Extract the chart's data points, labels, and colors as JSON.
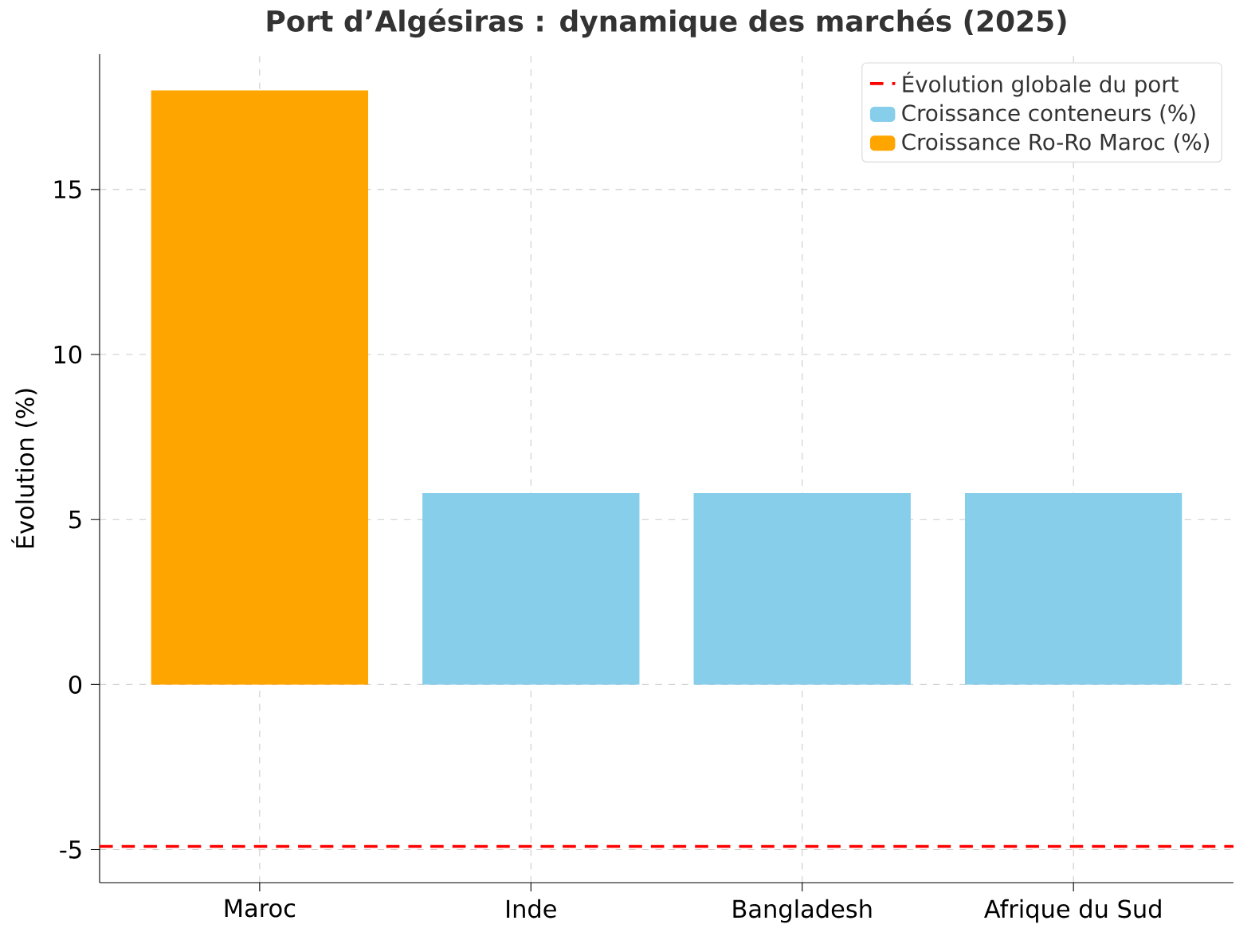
{
  "chart_data": {
    "type": "bar",
    "title": "Port d’Algésiras : dynamique des marchés (2025)",
    "ylabel": "Évolution (%)",
    "categories": [
      "Maroc",
      "Inde",
      "Bangladesh",
      "Afrique du Sud"
    ],
    "series": [
      {
        "name": "Croissance conteneurs (%)",
        "color": "#87ceeb",
        "values": [
          null,
          5.8,
          5.8,
          5.8
        ]
      },
      {
        "name": "Croissance Ro-Ro Maroc (%)",
        "color": "#ffa500",
        "values": [
          18,
          null,
          null,
          null
        ]
      }
    ],
    "ylim": [
      -6,
      19.1
    ],
    "yticks": [
      -5,
      0,
      5,
      10,
      15
    ],
    "ref_lines": [
      {
        "axis": "y",
        "value": -4.9,
        "label": "Évolution globale du port",
        "color": "#ff0000",
        "line_style": "dashed"
      }
    ],
    "grid": true,
    "legend": "top right"
  }
}
